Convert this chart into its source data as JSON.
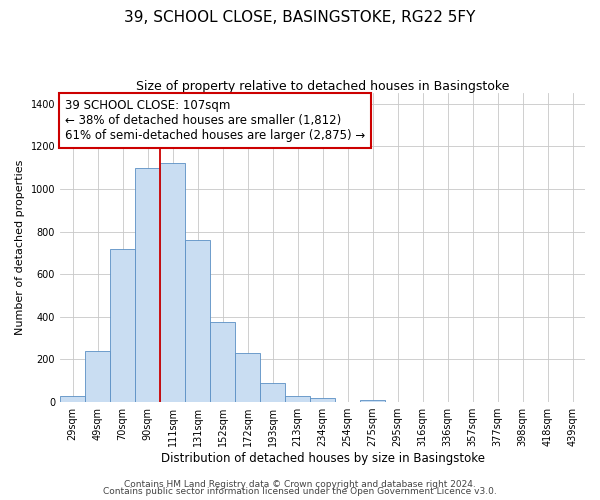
{
  "title": "39, SCHOOL CLOSE, BASINGSTOKE, RG22 5FY",
  "subtitle": "Size of property relative to detached houses in Basingstoke",
  "xlabel": "Distribution of detached houses by size in Basingstoke",
  "ylabel": "Number of detached properties",
  "bar_labels": [
    "29sqm",
    "49sqm",
    "70sqm",
    "90sqm",
    "111sqm",
    "131sqm",
    "152sqm",
    "172sqm",
    "193sqm",
    "213sqm",
    "234sqm",
    "254sqm",
    "275sqm",
    "295sqm",
    "316sqm",
    "336sqm",
    "357sqm",
    "377sqm",
    "398sqm",
    "418sqm",
    "439sqm"
  ],
  "bar_values": [
    30,
    240,
    720,
    1100,
    1120,
    760,
    375,
    230,
    90,
    30,
    20,
    0,
    10,
    0,
    0,
    0,
    0,
    0,
    0,
    0,
    0
  ],
  "bar_color": "#c9ddf2",
  "bar_edge_color": "#5a8fc4",
  "vline_color": "#cc0000",
  "vline_x_index": 4,
  "annotation_line1": "39 SCHOOL CLOSE: 107sqm",
  "annotation_line2": "← 38% of detached houses are smaller (1,812)",
  "annotation_line3": "61% of semi-detached houses are larger (2,875) →",
  "annotation_box_edge_color": "#cc0000",
  "ylim": [
    0,
    1450
  ],
  "yticks": [
    0,
    200,
    400,
    600,
    800,
    1000,
    1200,
    1400
  ],
  "grid_color": "#c8c8c8",
  "footer_line1": "Contains HM Land Registry data © Crown copyright and database right 2024.",
  "footer_line2": "Contains public sector information licensed under the Open Government Licence v3.0.",
  "bg_color": "#ffffff",
  "title_fontsize": 11,
  "subtitle_fontsize": 9,
  "annotation_fontsize": 8.5,
  "tick_fontsize": 7,
  "ylabel_fontsize": 8,
  "xlabel_fontsize": 8.5,
  "footer_fontsize": 6.5
}
